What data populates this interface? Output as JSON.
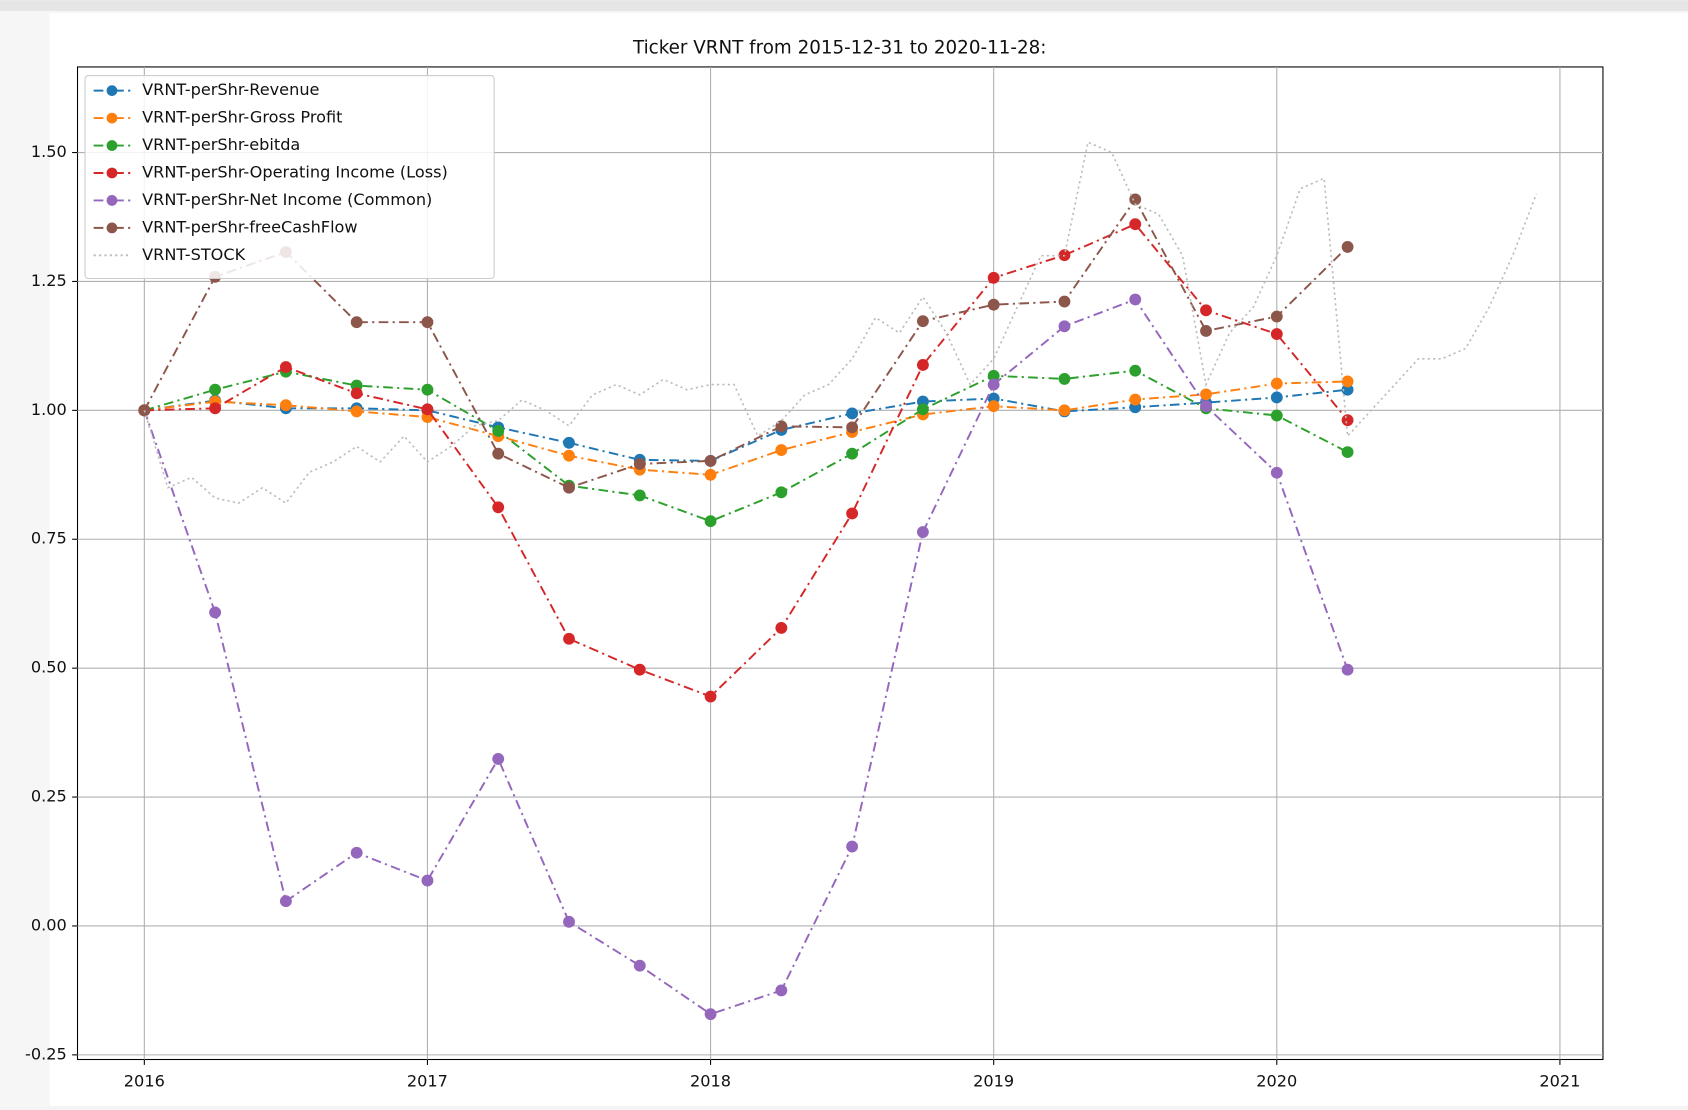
{
  "chart_data": {
    "type": "line",
    "title": "Ticker VRNT from 2015-12-31 to 2020-11-28:",
    "x": [
      2016,
      2016.25,
      2016.5,
      2016.75,
      2017,
      2017.25,
      2017.5,
      2017.75,
      2018,
      2018.25,
      2018.5,
      2018.75,
      2019,
      2019.25,
      2019.5,
      2019.75,
      2020,
      2020.25
    ],
    "series": [
      {
        "name": "VRNT-perShr-Revenue",
        "color": "#1f77b4",
        "style": "dashdot",
        "markers": true,
        "values": [
          1.0,
          1.019,
          1.004,
          1.004,
          1.0,
          0.967,
          0.937,
          0.904,
          0.902,
          0.962,
          0.994,
          1.017,
          1.023,
          0.998,
          1.006,
          1.015,
          1.025,
          1.04
        ]
      },
      {
        "name": "VRNT-perShr-Gross Profit",
        "color": "#ff7f0e",
        "style": "dashdot",
        "markers": true,
        "values": [
          1.0,
          1.017,
          1.01,
          0.998,
          0.987,
          0.95,
          0.912,
          0.885,
          0.875,
          0.923,
          0.958,
          0.992,
          1.008,
          1.0,
          1.021,
          1.031,
          1.052,
          1.056
        ]
      },
      {
        "name": "VRNT-perShr-ebitda",
        "color": "#2ca02c",
        "style": "dashdot",
        "markers": true,
        "values": [
          1.0,
          1.04,
          1.075,
          1.048,
          1.04,
          0.96,
          0.854,
          0.835,
          0.785,
          0.841,
          0.916,
          1.002,
          1.067,
          1.061,
          1.077,
          1.004,
          0.99,
          0.919
        ]
      },
      {
        "name": "VRNT-perShr-Operating Income (Loss)",
        "color": "#d62728",
        "style": "dashdot",
        "markers": true,
        "values": [
          1.0,
          1.004,
          1.084,
          1.033,
          1.002,
          0.812,
          0.557,
          0.497,
          0.445,
          0.578,
          0.8,
          1.088,
          1.257,
          1.301,
          1.361,
          1.194,
          1.148,
          0.981
        ]
      },
      {
        "name": "VRNT-perShr-Net Income (Common)",
        "color": "#9467bd",
        "style": "dashdot",
        "markers": true,
        "values": [
          1.0,
          0.608,
          0.048,
          0.142,
          0.088,
          0.324,
          0.008,
          -0.077,
          -0.171,
          -0.125,
          0.154,
          0.764,
          1.05,
          1.163,
          1.215,
          1.008,
          0.879,
          0.497
        ]
      },
      {
        "name": "VRNT-perShr-freeCashFlow",
        "color": "#8c564b",
        "style": "dashdot",
        "markers": true,
        "values": [
          1.0,
          1.259,
          1.307,
          1.171,
          1.171,
          0.916,
          0.85,
          0.896,
          0.902,
          0.969,
          0.967,
          1.173,
          1.205,
          1.211,
          1.409,
          1.154,
          1.182,
          1.317
        ]
      },
      {
        "name": "VRNT-STOCK",
        "color": "#bbbbbb",
        "style": "dotted",
        "markers": false,
        "x": [
          2016,
          2016.083,
          2016.167,
          2016.25,
          2016.333,
          2016.417,
          2016.5,
          2016.583,
          2016.667,
          2016.75,
          2016.833,
          2016.917,
          2017,
          2017.083,
          2017.167,
          2017.25,
          2017.333,
          2017.417,
          2017.5,
          2017.583,
          2017.667,
          2017.75,
          2017.833,
          2017.917,
          2018,
          2018.083,
          2018.167,
          2018.25,
          2018.333,
          2018.417,
          2018.5,
          2018.583,
          2018.667,
          2018.75,
          2018.833,
          2018.917,
          2019,
          2019.083,
          2019.167,
          2019.25,
          2019.333,
          2019.417,
          2019.5,
          2019.583,
          2019.667,
          2019.75,
          2019.833,
          2019.917,
          2020,
          2020.083,
          2020.167,
          2020.25,
          2020.333,
          2020.417,
          2020.5,
          2020.583,
          2020.667,
          2020.75,
          2020.833,
          2020.917
        ],
        "values": [
          1.0,
          0.85,
          0.87,
          0.83,
          0.82,
          0.85,
          0.82,
          0.88,
          0.9,
          0.93,
          0.9,
          0.95,
          0.9,
          0.93,
          0.97,
          0.98,
          1.02,
          1.0,
          0.97,
          1.03,
          1.05,
          1.03,
          1.06,
          1.04,
          1.05,
          1.05,
          0.95,
          0.98,
          1.03,
          1.05,
          1.1,
          1.18,
          1.15,
          1.22,
          1.15,
          1.05,
          1.1,
          1.2,
          1.3,
          1.3,
          1.52,
          1.5,
          1.4,
          1.38,
          1.3,
          1.05,
          1.15,
          1.2,
          1.3,
          1.43,
          1.45,
          0.95,
          1.0,
          1.05,
          1.1,
          1.1,
          1.12,
          1.2,
          1.3,
          1.42
        ]
      }
    ],
    "xlim": [
      2015.764,
      2021.152
    ],
    "xticks": [
      2016,
      2017,
      2018,
      2019,
      2020,
      2021
    ],
    "ylim": [
      -0.259,
      1.666
    ],
    "yticks": [
      -0.25,
      {
        "value": 0,
        "label": "0.00"
      },
      0.25,
      {
        "value": 0.5,
        "label": "0.50"
      },
      0.75,
      {
        "value": 1,
        "label": "1.00"
      },
      1.25,
      {
        "value": 1.5,
        "label": "1.50"
      }
    ],
    "grid": true,
    "legend": "upper left"
  }
}
